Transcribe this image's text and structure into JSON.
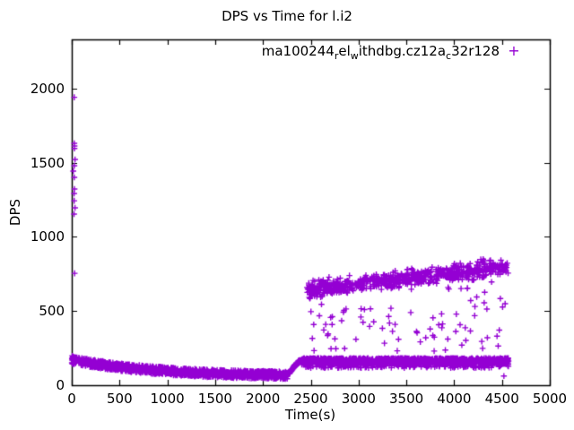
{
  "window": {
    "background": "#ffffff",
    "axis_color": "#000000"
  },
  "chart_data": {
    "type": "scatter",
    "title": "DPS vs Time for l.i2",
    "xlabel": "Time(s)",
    "ylabel": "DPS",
    "xlim": [
      0,
      5000
    ],
    "ylim": [
      0,
      2330
    ],
    "xticks": [
      0,
      500,
      1000,
      1500,
      2000,
      2500,
      3000,
      3500,
      4000,
      4500,
      5000
    ],
    "yticks": [
      0,
      500,
      1000,
      1500,
      2000
    ],
    "grid": false,
    "marker": "plus",
    "axis_color": "#000000",
    "legend": {
      "position": "top-right-inside",
      "entries": [
        {
          "label": "ma100244_rel_withdbg.cz12a_c32r128",
          "marker_glyph": "+",
          "color": "#9400d3",
          "display_segments": [
            {
              "text": "ma100244"
            },
            {
              "text": "r",
              "sub": true
            },
            {
              "text": "el"
            },
            {
              "text": "w",
              "sub": true
            },
            {
              "text": "ithdbg.cz12a"
            },
            {
              "text": "c",
              "sub": true
            },
            {
              "text": "32r128"
            }
          ]
        }
      ]
    },
    "series": [
      {
        "name": "ma100244_rel_withdbg.cz12a_c32r128",
        "color": "#9400d3",
        "marker": "plus",
        "generator": {
          "seed": 11,
          "segments": [
            {
              "kind": "column",
              "desc": "startup spike column at t=0",
              "x": [
                14,
                38
              ],
              "values": [
                1940,
                1630,
                1612,
                1595,
                1521,
                1479,
                1443,
                1400,
                1322,
                1292,
                1243,
                1195,
                1153,
                754
              ]
            },
            {
              "kind": "decay_band",
              "desc": "load phase: DPS decays from ~170 to ~65",
              "x": [
                0,
                2255
              ],
              "points": 1400,
              "base": 58,
              "amp": 112,
              "tau": 900,
              "half_width": 26
            },
            {
              "kind": "ramp",
              "desc": "throughput ramp after load phase",
              "x": [
                2230,
                2400
              ],
              "points": 150,
              "from": 68,
              "to": 163,
              "half_width": 9
            },
            {
              "kind": "flat_band",
              "desc": "steady band ~163 DPS with downward fuzz",
              "x": [
                2400,
                4570
              ],
              "points": 1500,
              "center": 163,
              "half_width": 20,
              "low_tail": {
                "prob": 0.12,
                "min": 116
              }
            },
            {
              "kind": "cloud",
              "desc": "query-phase cloud rising ~640 to ~800 DPS",
              "x": [
                2460,
                4565
              ],
              "points": 800,
              "center_start": 640,
              "center_end": 800,
              "spread": 85,
              "below": {
                "prob": 0.12,
                "min": 228,
                "gap": 90
              },
              "vmax": 950
            },
            {
              "kind": "points",
              "desc": "isolated outliers",
              "pts": [
                [
                  4520,
                  62
                ],
                [
                  6,
                  198
                ],
                [
                  12,
                  192
                ],
                [
                  22,
                  188
                ]
              ]
            }
          ]
        }
      }
    ]
  }
}
